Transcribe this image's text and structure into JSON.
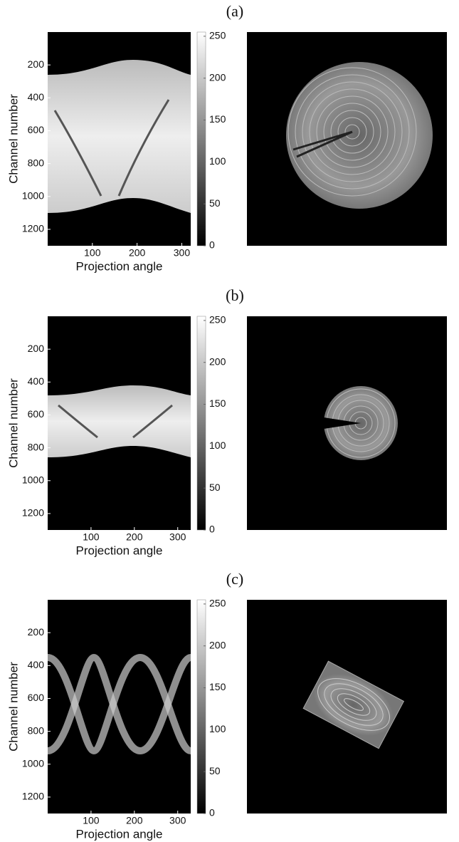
{
  "chart_data": [
    {
      "type": "image",
      "title": "(a)",
      "xlabel": "Projection angle",
      "ylabel": "Channel number",
      "xlim": [
        0,
        320
      ],
      "xticks": [
        100,
        200,
        300
      ],
      "ylim": [
        0,
        1300
      ],
      "yticks": [
        200,
        400,
        600,
        800,
        1000,
        1200
      ],
      "clim": [
        0,
        255
      ],
      "cticks": [
        0,
        50,
        100,
        150,
        200,
        250
      ]
    },
    {
      "type": "image",
      "title": "(b)",
      "xlabel": "Projection angle",
      "ylabel": "Channel number",
      "xlim": [
        0,
        330
      ],
      "xticks": [
        100,
        200,
        300
      ],
      "ylim": [
        0,
        1300
      ],
      "yticks": [
        200,
        400,
        600,
        800,
        1000,
        1200
      ],
      "clim": [
        0,
        255
      ],
      "cticks": [
        0,
        50,
        100,
        150,
        200,
        250
      ]
    },
    {
      "type": "image",
      "title": "(c)",
      "xlabel": "Projection angle",
      "ylabel": "Channel number",
      "xlim": [
        0,
        330
      ],
      "xticks": [
        100,
        200,
        300
      ],
      "ylim": [
        0,
        1300
      ],
      "yticks": [
        200,
        400,
        600,
        800,
        1000,
        1200
      ],
      "clim": [
        0,
        255
      ],
      "cticks": [
        0,
        50,
        100,
        150,
        200,
        250
      ]
    }
  ]
}
